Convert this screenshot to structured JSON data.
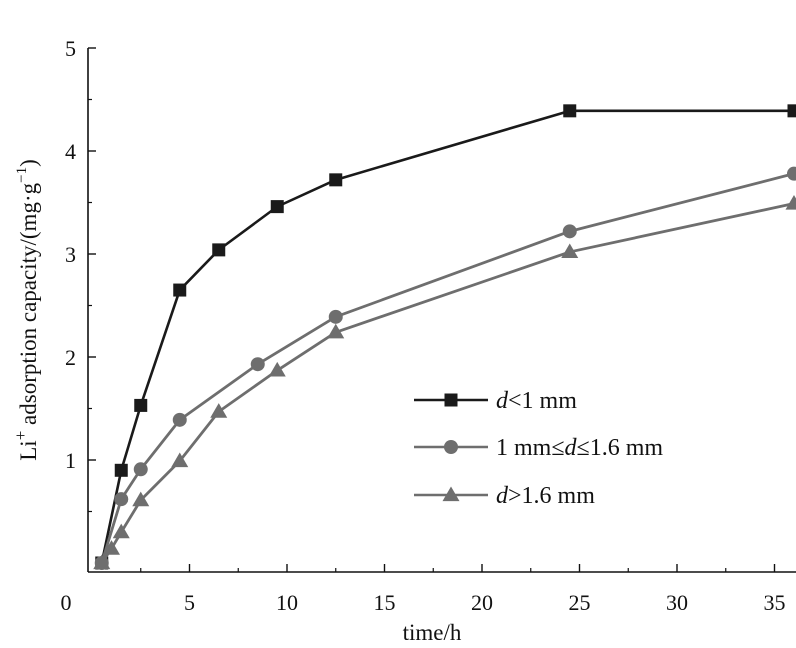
{
  "chart_data": {
    "type": "line",
    "title": "",
    "xlabel": "time/h",
    "ylabel": {
      "base": "Li",
      "superscript": "+",
      "text": " adsorption capacity/(mg·g",
      "exponent": "−1",
      "close": ")"
    },
    "xlim": [
      0,
      36
    ],
    "ylim": [
      0,
      5
    ],
    "x_ticks": [
      0,
      5,
      10,
      15,
      20,
      25,
      30,
      35
    ],
    "y_ticks": [
      1,
      2,
      3,
      4,
      5
    ],
    "x_tick_labels": [
      "0",
      "5",
      "10",
      "15",
      "20",
      "25",
      "30",
      "35"
    ],
    "y_tick_labels": [
      "1",
      "2",
      "3",
      "4",
      "5"
    ],
    "grid": false,
    "legend_position": "center-right",
    "series": [
      {
        "name": "d<1 mm",
        "legend_parts": [
          {
            "text": "d",
            "italic": true
          },
          {
            "text": "<1 mm",
            "italic": false
          }
        ],
        "marker": "square",
        "color": "#1a1a1a",
        "x": [
          0.5,
          1.5,
          2.5,
          4.5,
          6.5,
          9.5,
          12.5,
          24.5,
          36
        ],
        "y": [
          0,
          0.9,
          1.53,
          2.65,
          3.04,
          3.46,
          3.72,
          4.39,
          4.39
        ]
      },
      {
        "name": "1 mm≤d≤1.6 mm",
        "legend_parts": [
          {
            "text": "1 mm≤",
            "italic": false
          },
          {
            "text": "d",
            "italic": true
          },
          {
            "text": "≤1.6 mm",
            "italic": false
          }
        ],
        "marker": "circle",
        "color": "#6e6e6e",
        "x": [
          0.5,
          1.5,
          2.5,
          4.5,
          8.5,
          12.5,
          24.5,
          36
        ],
        "y": [
          0,
          0.62,
          0.91,
          1.39,
          1.93,
          2.39,
          3.22,
          3.78
        ]
      },
      {
        "name": "d>1.6 mm",
        "legend_parts": [
          {
            "text": "d",
            "italic": true
          },
          {
            "text": ">1.6 mm",
            "italic": false
          }
        ],
        "marker": "triangle",
        "color": "#6e6e6e",
        "x": [
          0.5,
          1,
          1.5,
          2.5,
          4.5,
          6.5,
          9.5,
          12.5,
          24.5,
          36
        ],
        "y": [
          0,
          0.14,
          0.3,
          0.61,
          0.99,
          1.47,
          1.87,
          2.24,
          3.02,
          3.49
        ]
      }
    ]
  }
}
